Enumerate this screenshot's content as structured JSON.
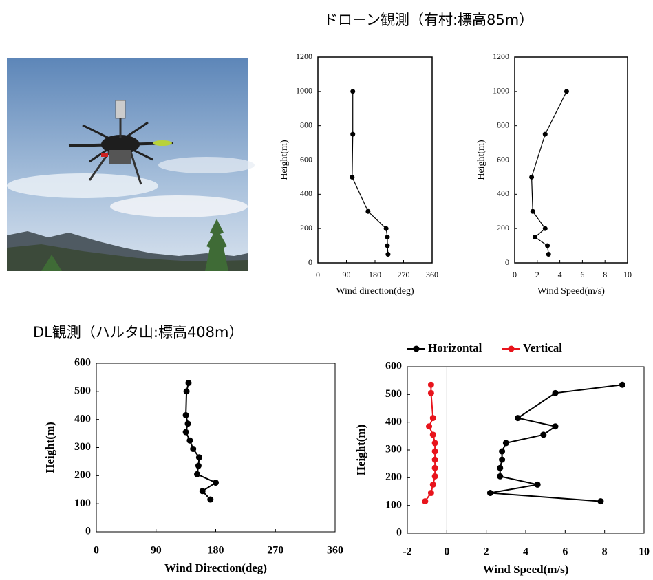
{
  "header_title": "ドローン観測（有村:標高85m）",
  "section_label": "DL観測（ハルタ山:標高408m）",
  "chart_data": [
    {
      "type": "line",
      "x_label": "Wind direction(deg)",
      "y_label": "Height(m)",
      "xlim": [
        0,
        360
      ],
      "xticks": [
        0,
        90,
        180,
        270,
        360
      ],
      "ylim": [
        0,
        1200
      ],
      "yticks": [
        0,
        200,
        400,
        600,
        800,
        1000,
        1200
      ],
      "series": [
        {
          "color": "#000000",
          "x": [
            110,
            110,
            108,
            158,
            215,
            219,
            219,
            221
          ],
          "values": [
            1000,
            750,
            500,
            300,
            200,
            150,
            100,
            50
          ]
        }
      ]
    },
    {
      "type": "line",
      "x_label": "Wind Speed(m/s)",
      "y_label": "Height(m)",
      "xlim": [
        0,
        10
      ],
      "xticks": [
        0,
        2,
        4,
        6,
        8,
        10
      ],
      "ylim": [
        0,
        1200
      ],
      "yticks": [
        0,
        200,
        400,
        600,
        800,
        1000,
        1200
      ],
      "series": [
        {
          "color": "#000000",
          "x": [
            4.6,
            2.7,
            1.5,
            1.6,
            2.7,
            1.8,
            2.9,
            3.0
          ],
          "values": [
            1000,
            750,
            500,
            300,
            200,
            150,
            100,
            50
          ]
        }
      ]
    },
    {
      "type": "line",
      "x_label": "Wind Direction(deg)",
      "y_label": "Height(m)",
      "xlim": [
        0,
        360
      ],
      "xticks": [
        0,
        90,
        180,
        270,
        360
      ],
      "ylim": [
        0,
        600
      ],
      "yticks": [
        0,
        100,
        200,
        300,
        400,
        500,
        600
      ],
      "series": [
        {
          "color": "#000000",
          "x": [
            139,
            136,
            135,
            138,
            135,
            141,
            146,
            155,
            154,
            152,
            180,
            160,
            172
          ],
          "values": [
            530,
            500,
            415,
            385,
            355,
            325,
            295,
            265,
            235,
            205,
            175,
            145,
            115
          ]
        }
      ]
    },
    {
      "type": "line",
      "x_label": "Wind Speed(m/s)",
      "y_label": "Height(m)",
      "xlim": [
        -2,
        10
      ],
      "xticks": [
        -2,
        0,
        2,
        4,
        6,
        8,
        10
      ],
      "ylim": [
        0,
        600
      ],
      "yticks": [
        0,
        100,
        200,
        300,
        400,
        500,
        600
      ],
      "zero_line": true,
      "legend": "top",
      "series": [
        {
          "name": "Horizontal",
          "color": "#000000",
          "x": [
            8.9,
            5.5,
            3.6,
            5.5,
            4.9,
            3.0,
            2.8,
            2.8,
            2.7,
            2.7,
            4.6,
            2.2,
            7.8
          ],
          "values": [
            535,
            505,
            415,
            385,
            355,
            325,
            295,
            265,
            235,
            205,
            175,
            145,
            115
          ]
        },
        {
          "name": "Vertical",
          "color": "#e8141c",
          "x": [
            -0.8,
            -0.8,
            -0.7,
            -0.9,
            -0.7,
            -0.6,
            -0.6,
            -0.6,
            -0.6,
            -0.6,
            -0.7,
            -0.8,
            -1.1
          ],
          "values": [
            535,
            505,
            415,
            385,
            355,
            325,
            295,
            265,
            235,
            205,
            175,
            145,
            115
          ]
        }
      ]
    }
  ]
}
